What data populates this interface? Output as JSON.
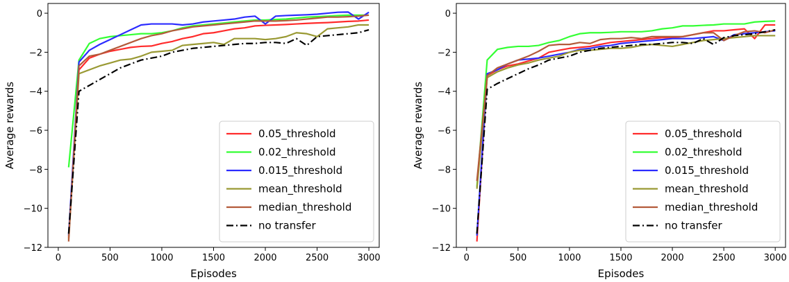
{
  "chart_data": [
    {
      "type": "line",
      "xlabel": "Episodes",
      "ylabel": "Average rewards",
      "xlim": [
        -100,
        3100
      ],
      "ylim": [
        -12,
        0.5
      ],
      "xticks": [
        0,
        500,
        1000,
        1500,
        2000,
        2500,
        3000
      ],
      "yticks": [
        0,
        -2,
        -4,
        -6,
        -8,
        -10,
        -12
      ],
      "grid": false,
      "legend_position": "lower-right",
      "x": [
        100,
        200,
        300,
        400,
        500,
        600,
        700,
        800,
        900,
        1000,
        1100,
        1200,
        1300,
        1400,
        1500,
        1600,
        1700,
        1800,
        1900,
        2000,
        2100,
        2200,
        2300,
        2400,
        2500,
        2600,
        2700,
        2800,
        2900,
        3000
      ],
      "series": [
        {
          "name": "0.05_threshold",
          "color": "#ff2b2b",
          "style": "solid",
          "values": [
            -11.5,
            -2.9,
            -2.3,
            -2.1,
            -1.95,
            -1.85,
            -1.75,
            -1.7,
            -1.68,
            -1.55,
            -1.45,
            -1.3,
            -1.2,
            -1.05,
            -1.0,
            -0.9,
            -0.8,
            -0.75,
            -0.65,
            -0.62,
            -0.6,
            -0.58,
            -0.55,
            -0.52,
            -0.5,
            -0.48,
            -0.45,
            -0.42,
            -0.4,
            -0.35
          ]
        },
        {
          "name": "0.02_threshold",
          "color": "#33ff33",
          "style": "solid",
          "values": [
            -7.9,
            -2.4,
            -1.55,
            -1.3,
            -1.2,
            -1.15,
            -1.1,
            -1.05,
            -1.05,
            -1.0,
            -0.9,
            -0.75,
            -0.65,
            -0.6,
            -0.55,
            -0.5,
            -0.45,
            -0.4,
            -0.35,
            -0.35,
            -0.32,
            -0.3,
            -0.25,
            -0.2,
            -0.18,
            -0.15,
            -0.12,
            -0.1,
            -0.1,
            -0.1
          ]
        },
        {
          "name": "0.015_threshold",
          "color": "#2b2bff",
          "style": "solid",
          "values": [
            -11.4,
            -2.5,
            -1.9,
            -1.6,
            -1.35,
            -1.1,
            -0.85,
            -0.6,
            -0.55,
            -0.55,
            -0.55,
            -0.6,
            -0.55,
            -0.45,
            -0.4,
            -0.35,
            -0.3,
            -0.2,
            -0.15,
            -0.55,
            -0.15,
            -0.12,
            -0.1,
            -0.08,
            -0.05,
            0.0,
            0.05,
            0.06,
            -0.3,
            0.05
          ]
        },
        {
          "name": "mean_threshold",
          "color": "#999933",
          "style": "solid",
          "values": [
            -11.6,
            -3.1,
            -2.9,
            -2.7,
            -2.55,
            -2.4,
            -2.35,
            -2.2,
            -2.0,
            -1.95,
            -1.9,
            -1.65,
            -1.6,
            -1.55,
            -1.5,
            -1.6,
            -1.3,
            -1.3,
            -1.3,
            -1.35,
            -1.3,
            -1.2,
            -1.0,
            -1.05,
            -1.2,
            -0.8,
            -0.75,
            -0.7,
            -0.6,
            -0.6
          ]
        },
        {
          "name": "median_threshold",
          "color": "#b35a3a",
          "style": "solid",
          "values": [
            -11.7,
            -2.7,
            -2.2,
            -2.1,
            -1.9,
            -1.7,
            -1.5,
            -1.3,
            -1.15,
            -1.05,
            -0.9,
            -0.8,
            -0.7,
            -0.65,
            -0.6,
            -0.55,
            -0.5,
            -0.45,
            -0.4,
            -0.4,
            -0.4,
            -0.38,
            -0.35,
            -0.3,
            -0.25,
            -0.2,
            -0.2,
            -0.18,
            -0.15,
            -0.1
          ]
        },
        {
          "name": "no transfer",
          "color": "#000000",
          "style": "dashdot",
          "values": [
            -11.3,
            -4.0,
            -3.7,
            -3.4,
            -3.1,
            -2.8,
            -2.6,
            -2.4,
            -2.3,
            -2.2,
            -2.0,
            -1.9,
            -1.8,
            -1.75,
            -1.7,
            -1.65,
            -1.6,
            -1.55,
            -1.55,
            -1.5,
            -1.5,
            -1.55,
            -1.3,
            -1.65,
            -1.2,
            -1.15,
            -1.1,
            -1.05,
            -1.0,
            -0.85
          ]
        }
      ]
    },
    {
      "type": "line",
      "xlabel": "Episodes",
      "ylabel": "Average rewards",
      "xlim": [
        -100,
        3100
      ],
      "ylim": [
        -12,
        0.5
      ],
      "xticks": [
        0,
        500,
        1000,
        1500,
        2000,
        2500,
        3000
      ],
      "yticks": [
        0,
        -2,
        -4,
        -6,
        -8,
        -10,
        -12
      ],
      "grid": false,
      "legend_position": "lower-right",
      "x": [
        100,
        200,
        300,
        400,
        500,
        600,
        700,
        800,
        900,
        1000,
        1100,
        1200,
        1300,
        1400,
        1500,
        1600,
        1700,
        1800,
        1900,
        2000,
        2100,
        2200,
        2300,
        2400,
        2500,
        2600,
        2700,
        2800,
        2900,
        3000
      ],
      "series": [
        {
          "name": "0.05_threshold",
          "color": "#ff2b2b",
          "style": "solid",
          "values": [
            -11.7,
            -3.2,
            -2.9,
            -2.7,
            -2.6,
            -2.45,
            -2.3,
            -2.0,
            -1.9,
            -1.8,
            -1.75,
            -1.7,
            -1.6,
            -1.5,
            -1.45,
            -1.4,
            -1.35,
            -1.3,
            -1.25,
            -1.25,
            -1.2,
            -1.1,
            -1.0,
            -0.9,
            -0.9,
            -0.85,
            -0.8,
            -1.3,
            -0.6,
            -0.6
          ]
        },
        {
          "name": "0.02_threshold",
          "color": "#33ff33",
          "style": "solid",
          "values": [
            -8.9,
            -2.4,
            -1.85,
            -1.75,
            -1.7,
            -1.7,
            -1.65,
            -1.5,
            -1.4,
            -1.2,
            -1.05,
            -1.0,
            -1.0,
            -0.98,
            -0.95,
            -0.95,
            -0.95,
            -0.9,
            -0.8,
            -0.75,
            -0.65,
            -0.65,
            -0.62,
            -0.6,
            -0.55,
            -0.55,
            -0.55,
            -0.45,
            -0.42,
            -0.4
          ]
        },
        {
          "name": "0.015_threshold",
          "color": "#2b2bff",
          "style": "solid",
          "values": [
            -11.4,
            -3.1,
            -2.9,
            -2.6,
            -2.4,
            -2.35,
            -2.3,
            -2.2,
            -2.1,
            -2.0,
            -1.85,
            -1.8,
            -1.7,
            -1.65,
            -1.55,
            -1.5,
            -1.45,
            -1.4,
            -1.35,
            -1.3,
            -1.3,
            -1.3,
            -1.25,
            -1.2,
            -1.4,
            -1.1,
            -1.05,
            -1.0,
            -0.95,
            -0.9
          ]
        },
        {
          "name": "mean_threshold",
          "color": "#999933",
          "style": "solid",
          "values": [
            -9.0,
            -3.3,
            -3.0,
            -2.8,
            -2.65,
            -2.55,
            -2.4,
            -2.3,
            -2.2,
            -2.0,
            -1.9,
            -1.9,
            -1.85,
            -1.8,
            -1.8,
            -1.75,
            -1.65,
            -1.6,
            -1.65,
            -1.7,
            -1.6,
            -1.5,
            -1.4,
            -1.35,
            -1.3,
            -1.25,
            -1.2,
            -1.15,
            -1.15,
            -1.15
          ]
        },
        {
          "name": "median_threshold",
          "color": "#b35a3a",
          "style": "solid",
          "values": [
            -8.6,
            -3.2,
            -2.8,
            -2.6,
            -2.4,
            -2.2,
            -1.95,
            -1.65,
            -1.6,
            -1.6,
            -1.5,
            -1.55,
            -1.35,
            -1.3,
            -1.3,
            -1.25,
            -1.3,
            -1.2,
            -1.2,
            -1.2,
            -1.2,
            -1.1,
            -1.0,
            -1.0,
            -1.4,
            -1.15,
            -0.95,
            -0.9,
            -1.0,
            -0.85
          ]
        },
        {
          "name": "no transfer",
          "color": "#000000",
          "style": "dashdot",
          "values": [
            -11.3,
            -3.9,
            -3.6,
            -3.35,
            -3.1,
            -2.85,
            -2.65,
            -2.4,
            -2.3,
            -2.2,
            -2.0,
            -1.9,
            -1.8,
            -1.75,
            -1.7,
            -1.65,
            -1.6,
            -1.6,
            -1.55,
            -1.5,
            -1.5,
            -1.55,
            -1.3,
            -1.6,
            -1.25,
            -1.15,
            -1.1,
            -1.05,
            -0.95,
            -0.85
          ]
        }
      ]
    }
  ]
}
